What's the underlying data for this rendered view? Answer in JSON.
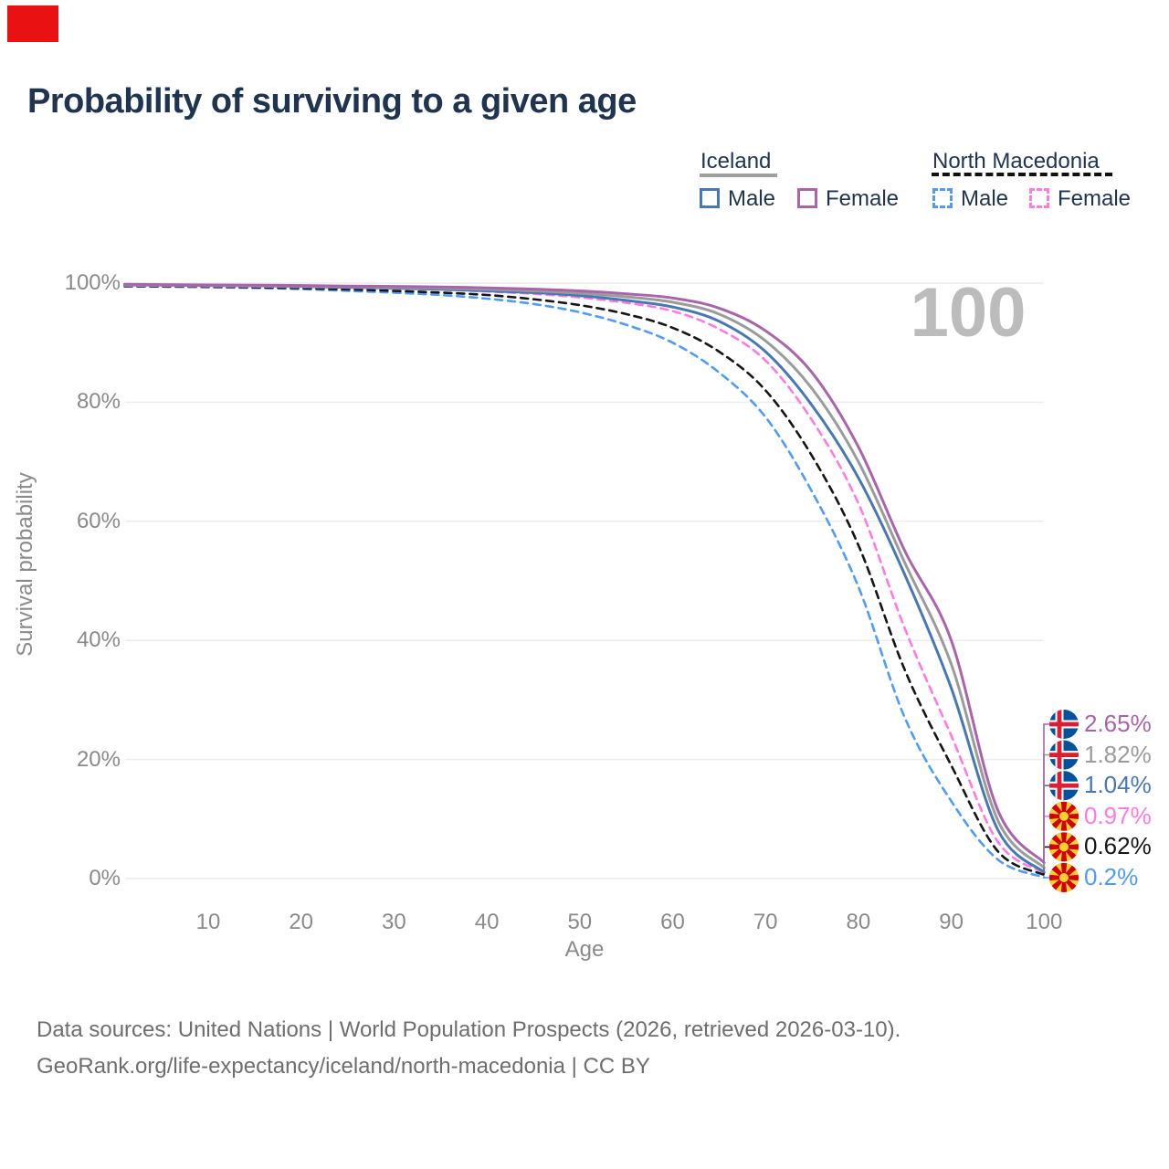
{
  "marker": {
    "color": "#ea1113"
  },
  "header": {
    "title": "Probability of surviving to a given age"
  },
  "legend": {
    "groups": [
      {
        "label": "Iceland",
        "underline_style": "solid",
        "underline_color": "#9e9e9e",
        "items": [
          {
            "label": "Male",
            "color": "#4878b4",
            "dashed": false
          },
          {
            "label": "Female",
            "color": "#a964ab",
            "dashed": false
          }
        ]
      },
      {
        "label": "North Macedonia",
        "underline_style": "dashed",
        "underline_color": "#111111",
        "items": [
          {
            "label": "Male",
            "color": "#4f9bf7",
            "dashed": true
          },
          {
            "label": "Female",
            "color": "#ff7ae1",
            "dashed": true
          }
        ]
      }
    ]
  },
  "chart_data": {
    "type": "line",
    "title": "Probability of surviving to a given age",
    "xlabel": "Age",
    "ylabel": "Survival probability",
    "xlim": [
      1,
      100
    ],
    "ylim": [
      0,
      100
    ],
    "grid": true,
    "watermark": "100",
    "x_ticks": [
      10,
      20,
      30,
      40,
      50,
      60,
      70,
      80,
      90,
      100
    ],
    "y_ticks": [
      0,
      20,
      40,
      60,
      80,
      100
    ],
    "y_tick_labels": [
      "0%",
      "20%",
      "40%",
      "60%",
      "80%",
      "100%"
    ],
    "x": [
      1,
      5,
      10,
      15,
      20,
      25,
      30,
      35,
      40,
      45,
      50,
      55,
      60,
      65,
      70,
      75,
      80,
      85,
      90,
      95,
      100
    ],
    "series": [
      {
        "name": "Iceland Female",
        "country": "Iceland",
        "sex": "Female",
        "color": "#a964ab",
        "dashed": false,
        "flag": "iceland",
        "end_label": "2.65%",
        "values": [
          99.8,
          99.75,
          99.7,
          99.65,
          99.6,
          99.5,
          99.45,
          99.35,
          99.2,
          99.0,
          98.7,
          98.2,
          97.5,
          95.8,
          92.0,
          85.0,
          72.5,
          55.0,
          40.0,
          11.5,
          2.65
        ]
      },
      {
        "name": "Iceland All",
        "country": "Iceland",
        "sex": "All",
        "color": "#9b9b9b",
        "dashed": false,
        "flag": "iceland",
        "end_label": "1.82%",
        "values": [
          99.75,
          99.7,
          99.65,
          99.6,
          99.5,
          99.4,
          99.3,
          99.15,
          98.95,
          98.7,
          98.3,
          97.7,
          96.8,
          94.8,
          90.3,
          82.3,
          70.0,
          53.0,
          36.0,
          9.8,
          1.82
        ]
      },
      {
        "name": "Iceland Male",
        "country": "Iceland",
        "sex": "Male",
        "color": "#4878b4",
        "dashed": false,
        "flag": "iceland",
        "end_label": "1.04%",
        "values": [
          99.7,
          99.65,
          99.6,
          99.55,
          99.45,
          99.3,
          99.15,
          98.95,
          98.7,
          98.4,
          97.9,
          97.1,
          96.0,
          93.6,
          88.5,
          79.5,
          67.3,
          51.0,
          32.0,
          8.2,
          1.04
        ]
      },
      {
        "name": "North Macedonia Female",
        "country": "North Macedonia",
        "sex": "Female",
        "color": "#ff7ae1",
        "dashed": true,
        "flag": "north-macedonia",
        "end_label": "0.97%",
        "values": [
          99.6,
          99.55,
          99.5,
          99.45,
          99.35,
          99.25,
          99.1,
          98.9,
          98.6,
          98.2,
          97.6,
          96.7,
          95.3,
          92.3,
          87.0,
          77.0,
          63.0,
          42.0,
          24.0,
          6.2,
          0.97
        ]
      },
      {
        "name": "North Macedonia All",
        "country": "North Macedonia",
        "sex": "All",
        "color": "#151515",
        "dashed": true,
        "flag": "north-macedonia",
        "end_label": "0.62%",
        "values": [
          99.5,
          99.45,
          99.4,
          99.3,
          99.15,
          98.95,
          98.7,
          98.4,
          98.0,
          97.3,
          96.3,
          94.8,
          92.5,
          88.5,
          82.0,
          71.0,
          56.0,
          35.0,
          19.0,
          4.6,
          0.62
        ]
      },
      {
        "name": "North Macedonia Male",
        "country": "North Macedonia",
        "sex": "Male",
        "color": "#4f9bf7",
        "dashed": true,
        "flag": "north-macedonia",
        "end_label": "0.2%",
        "values": [
          99.45,
          99.4,
          99.3,
          99.2,
          99.0,
          98.7,
          98.4,
          98.0,
          97.4,
          96.5,
          95.1,
          93.0,
          90.0,
          85.0,
          77.5,
          65.0,
          49.0,
          27.0,
          13.0,
          3.2,
          0.2
        ]
      }
    ]
  },
  "flags": {
    "iceland_blue": "#02529c",
    "iceland_red": "#dc1e35",
    "nm_red": "#d20000",
    "nm_yellow": "#ffe28a"
  },
  "footer": {
    "line1": "Data sources: United Nations | World Population Prospects (2026, retrieved 2026-03-10).",
    "line2": "GeoRank.org/life-expectancy/iceland/north-macedonia | CC BY"
  }
}
